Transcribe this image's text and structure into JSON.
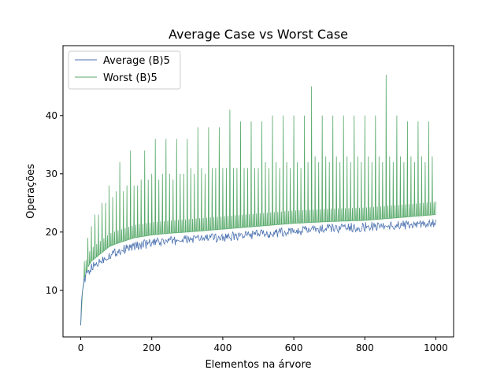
{
  "chart_data": {
    "type": "line",
    "title": "Average Case vs Worst Case",
    "xlabel": "Elementos na árvore",
    "ylabel": "Operações",
    "xlim": [
      -50,
      1050
    ],
    "ylim": [
      2,
      52
    ],
    "xticks": [
      0,
      200,
      400,
      600,
      800,
      1000
    ],
    "yticks": [
      10,
      20,
      30,
      40
    ],
    "legend_position": "top-left",
    "grid": false,
    "series": [
      {
        "name": "Average (B)5",
        "color": "#4c72b0",
        "x": [
          0,
          2,
          5,
          10,
          15,
          20,
          30,
          40,
          50,
          60,
          70,
          80,
          90,
          100,
          120,
          140,
          160,
          180,
          200,
          220,
          240,
          260,
          280,
          300,
          320,
          340,
          360,
          380,
          400,
          420,
          440,
          460,
          480,
          500,
          520,
          540,
          560,
          580,
          600,
          620,
          640,
          660,
          680,
          700,
          720,
          740,
          760,
          780,
          800,
          820,
          840,
          860,
          880,
          900,
          920,
          940,
          960,
          980,
          1000
        ],
        "y": [
          4,
          8,
          10,
          11.5,
          12.5,
          13,
          13.8,
          14.3,
          14.8,
          15.2,
          15.6,
          16,
          16.3,
          16.6,
          17,
          17.4,
          17.7,
          17.9,
          18.1,
          18.2,
          18.4,
          18.5,
          18.6,
          18.7,
          18.8,
          18.9,
          19,
          19,
          19.1,
          19.2,
          19.3,
          19.4,
          19.5,
          19.6,
          19.7,
          19.8,
          19.9,
          20,
          20.1,
          20.2,
          20.3,
          20.4,
          20.5,
          20.6,
          20.6,
          20.7,
          20.8,
          20.8,
          20.9,
          21,
          21,
          21.1,
          21.1,
          21.2,
          21.2,
          21.3,
          21.3,
          21.4,
          21.4
        ]
      },
      {
        "name": "Worst (B)5",
        "color": "#55a868",
        "base_x": [
          0,
          5,
          10,
          20,
          30,
          40,
          60,
          80,
          100,
          150,
          200,
          250,
          300,
          400,
          500,
          600,
          700,
          800,
          900,
          1000
        ],
        "base_y": [
          4,
          10,
          12,
          14,
          15,
          15.5,
          16.5,
          17.5,
          18,
          19,
          19.5,
          19.8,
          20,
          20.5,
          21,
          21.5,
          21.8,
          22,
          22.5,
          23
        ],
        "peaks_x": [
          10,
          20,
          30,
          40,
          50,
          60,
          70,
          80,
          90,
          100,
          110,
          120,
          130,
          140,
          150,
          160,
          170,
          180,
          190,
          200,
          210,
          220,
          230,
          240,
          250,
          260,
          270,
          280,
          290,
          300,
          310,
          320,
          330,
          340,
          350,
          360,
          370,
          380,
          390,
          400,
          410,
          420,
          430,
          440,
          450,
          460,
          470,
          480,
          490,
          500,
          510,
          520,
          530,
          540,
          550,
          560,
          570,
          580,
          590,
          600,
          610,
          620,
          630,
          640,
          650,
          660,
          670,
          680,
          690,
          700,
          710,
          720,
          730,
          740,
          750,
          760,
          770,
          780,
          790,
          800,
          810,
          820,
          830,
          840,
          850,
          860,
          870,
          880,
          890,
          900,
          910,
          920,
          930,
          940,
          950,
          960,
          970,
          980,
          990
        ],
        "peaks_y": [
          15,
          19,
          21,
          23,
          23,
          25,
          25,
          28,
          26,
          27,
          32,
          27,
          28,
          34,
          28,
          28,
          29,
          34,
          29,
          30,
          36,
          29,
          30,
          36,
          30,
          29,
          36,
          30,
          30,
          36,
          31,
          30,
          38,
          31,
          30,
          38,
          31,
          31,
          38,
          31,
          31,
          41,
          31,
          31,
          39,
          31,
          31,
          39,
          31,
          31,
          39,
          32,
          31,
          40,
          32,
          31,
          40,
          32,
          31,
          40,
          32,
          31,
          40,
          32,
          45,
          33,
          32,
          40,
          33,
          32,
          40,
          33,
          32,
          40,
          33,
          32,
          40,
          33,
          32,
          40,
          33,
          32,
          40,
          33,
          32,
          47,
          33,
          32,
          40,
          33,
          32,
          39,
          33,
          32,
          39,
          33,
          32,
          39,
          33
        ]
      }
    ]
  }
}
